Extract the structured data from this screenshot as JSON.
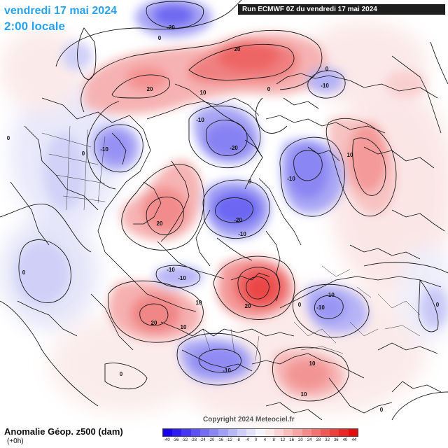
{
  "header": {
    "date": "vendredi 17 mai 2024",
    "time": "2:00 locale",
    "run": "Run ECMWF 0Z du vendredi 17 mai 2024"
  },
  "footer": {
    "title": "Anomalie Géop. z500 (dam)",
    "subtitle": "(+0h)",
    "copyright": "Copyright 2024 Meteociel.fr"
  },
  "colorbar": {
    "ticks": [
      "-40",
      "-36",
      "-32",
      "-28",
      "-24",
      "-20",
      "-16",
      "-12",
      "-8",
      "-4",
      "0",
      "4",
      "8",
      "12",
      "16",
      "20",
      "24",
      "28",
      "32",
      "36",
      "40",
      "44"
    ],
    "colors": [
      "#1a00f0",
      "#2d1cf4",
      "#4536f4",
      "#5c52f3",
      "#746cf2",
      "#8a87f3",
      "#a19ff4",
      "#b8b7f6",
      "#cecef8",
      "#e2e2fa",
      "#f4f4fb",
      "#fbe9e9",
      "#f9d3d3",
      "#f8bcbc",
      "#f6a4a4",
      "#f48b8b",
      "#f27272",
      "#f05858",
      "#ee3f3f",
      "#eb2626",
      "#e60d0d"
    ]
  },
  "map": {
    "anomalies": [
      {
        "name": "greenland-high",
        "value": 20,
        "sign": "positive"
      },
      {
        "name": "barents-low",
        "value": -20,
        "sign": "negative"
      },
      {
        "name": "svalbard-low",
        "value": -20,
        "sign": "negative"
      },
      {
        "name": "siberia-low",
        "value": -20,
        "sign": "negative"
      },
      {
        "name": "pacific-low-top",
        "value": -20,
        "sign": "negative"
      },
      {
        "name": "atlantic-high",
        "value": 20,
        "sign": "positive"
      },
      {
        "name": "scandinavia-high",
        "value": 20,
        "sign": "positive"
      },
      {
        "name": "east-siberia-high",
        "value": 10,
        "sign": "positive"
      },
      {
        "name": "europe-low",
        "value": -10,
        "sign": "negative"
      },
      {
        "name": "central-asia-low",
        "value": -10,
        "sign": "negative"
      }
    ],
    "contour_labels": [
      "-20",
      "20",
      "10",
      "0",
      "-10",
      "-20",
      "10",
      "0",
      "-10",
      "20",
      "-10",
      "-20",
      "-10",
      "0",
      "20",
      "-10",
      "0",
      "-10",
      "20",
      "10",
      "0",
      "20",
      "-10",
      "-10",
      "10",
      "0",
      "-10",
      "10",
      "0",
      "-10",
      "0",
      "10",
      "0",
      "0",
      "0"
    ]
  }
}
